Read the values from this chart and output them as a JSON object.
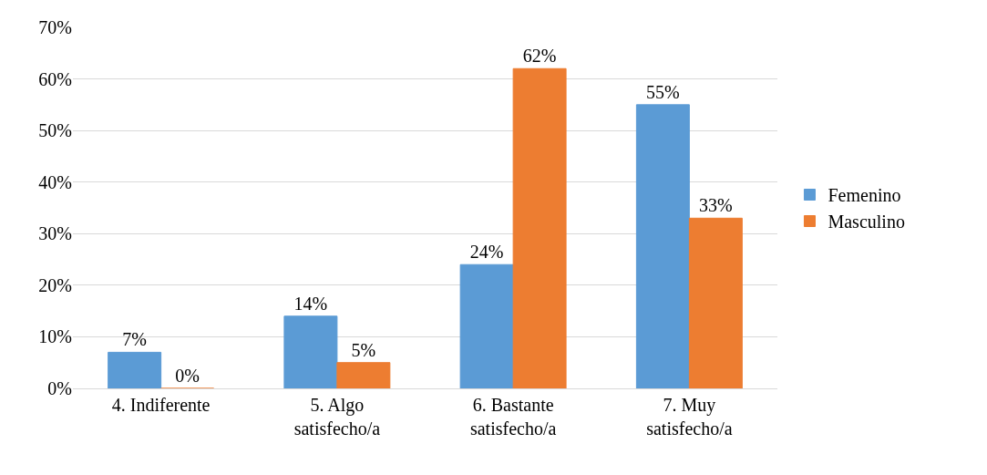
{
  "chart_data": {
    "type": "bar",
    "categories": [
      "4. Indiferente",
      "5. Algo\nsatisfecho/a",
      "6. Bastante\nsatisfecho/a",
      "7. Muy\nsatisfecho/a"
    ],
    "series": [
      {
        "name": "Femenino",
        "color": "#5b9bd5",
        "values": [
          7,
          14,
          24,
          55
        ],
        "value_labels": [
          "7%",
          "14%",
          "24%",
          "55%"
        ]
      },
      {
        "name": "Masculino",
        "color": "#ed7d31",
        "values": [
          0,
          5,
          62,
          33
        ],
        "value_labels": [
          "0%",
          "5%",
          "62%",
          "33%"
        ]
      }
    ],
    "ylim": [
      0,
      70
    ],
    "yticks": [
      {
        "value": 0,
        "label": "0%"
      },
      {
        "value": 10,
        "label": "10%"
      },
      {
        "value": 20,
        "label": "20%"
      },
      {
        "value": 30,
        "label": "30%"
      },
      {
        "value": 40,
        "label": "40%"
      },
      {
        "value": 50,
        "label": "50%"
      },
      {
        "value": 60,
        "label": "60%"
      },
      {
        "value": 70,
        "label": "70%"
      }
    ],
    "grid": "y",
    "legend": "right"
  }
}
